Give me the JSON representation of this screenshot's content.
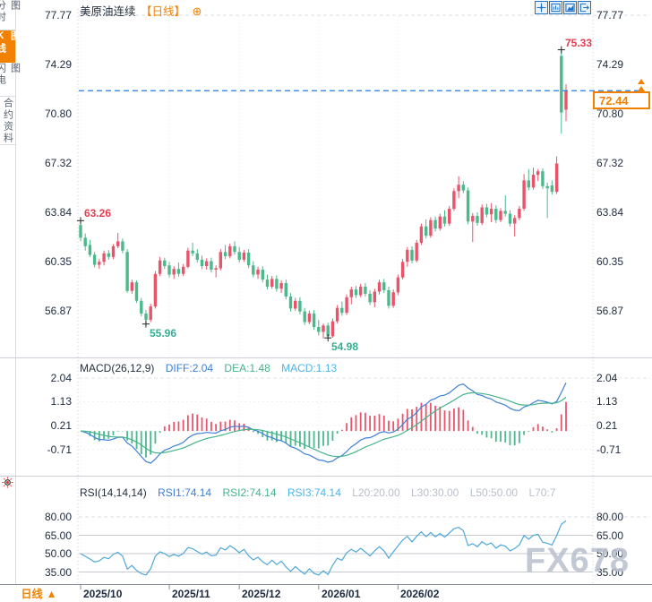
{
  "window": {
    "instrument_title": "美原油连续",
    "period_tag": "【日线】",
    "add_indicator_glyph": "⊕"
  },
  "sidebar": {
    "items": [
      {
        "label": "分时图",
        "active": false
      },
      {
        "label": "K线图",
        "active": true
      },
      {
        "label": "闪电图",
        "active": false
      },
      {
        "label": "合约资料",
        "active": false
      }
    ]
  },
  "toolbar_icons": [
    "crosshair-tool",
    "pane-window",
    "chart-style",
    "pane-exit"
  ],
  "bottom_bar": {
    "period_label": "日线",
    "dropdown_arrow": "▲"
  },
  "watermark": "FX678",
  "colors": {
    "accent_orange": "#f28100",
    "up_red": "#e8556a",
    "down_green": "#4bb98c",
    "diff_blue": "#3d7fd6",
    "dea_green": "#46b38a",
    "macd_cyan": "#4fb4e6",
    "rsi_line": "#4fa8d8",
    "axis_text": "#202c40",
    "annotation_red": "#e63c52",
    "annotation_teal": "#35ae93",
    "price_line_blue": "#1e7fe8",
    "grid": "#c9ced6",
    "watermark_gray": "#bfc6d1",
    "icon_blue": "#1f74c8"
  },
  "chart_data": [
    {
      "type": "candlestick",
      "title": "美原油连续 日线 (WTI crude continuous, daily)",
      "y_axis_labels": [
        "77.77",
        "74.29",
        "70.80",
        "67.32",
        "63.84",
        "60.35",
        "56.87"
      ],
      "y_axis_values": [
        77.77,
        74.29,
        70.8,
        67.32,
        63.84,
        60.35,
        56.87
      ],
      "ylim": [
        54.2,
        78.2
      ],
      "months": [
        {
          "label": "2025/10",
          "index": 0
        },
        {
          "label": "2025/11",
          "index": 19
        },
        {
          "label": "2025/12",
          "index": 34
        },
        {
          "label": "2026/01",
          "index": 51
        },
        {
          "label": "2026/02",
          "index": 68
        }
      ],
      "last_price": {
        "value": 72.44,
        "label": "72.44"
      },
      "annotations": [
        {
          "text": "63.26",
          "price": 63.26,
          "index": 0,
          "placement": "above-right",
          "color": "#e63c52"
        },
        {
          "text": "55.96",
          "price": 55.96,
          "index": 14,
          "placement": "below-right",
          "color": "#35ae93"
        },
        {
          "text": "54.98",
          "price": 54.98,
          "index": 53,
          "placement": "below-right",
          "color": "#35ae93"
        },
        {
          "text": "75.33",
          "price": 75.33,
          "index": 103,
          "placement": "above-right",
          "color": "#e63c52"
        }
      ],
      "candles": [
        [
          62.95,
          63.26,
          61.8,
          62.05
        ],
        [
          62.05,
          62.35,
          61.15,
          61.45
        ],
        [
          61.55,
          61.9,
          60.7,
          60.85
        ],
        [
          60.85,
          61.05,
          59.95,
          60.15
        ],
        [
          60.15,
          60.55,
          59.85,
          60.35
        ],
        [
          60.35,
          61.15,
          60.1,
          60.95
        ],
        [
          60.95,
          61.2,
          60.5,
          60.7
        ],
        [
          60.7,
          61.6,
          60.55,
          61.45
        ],
        [
          61.45,
          62.4,
          61.3,
          61.8
        ],
        [
          61.8,
          62.0,
          60.95,
          61.15
        ],
        [
          61.05,
          61.25,
          58.15,
          58.3
        ],
        [
          58.3,
          59.1,
          58.1,
          58.9
        ],
        [
          58.9,
          59.05,
          57.45,
          57.6
        ],
        [
          57.6,
          57.8,
          56.5,
          56.7
        ],
        [
          56.7,
          56.95,
          55.96,
          56.25
        ],
        [
          56.25,
          57.4,
          56.1,
          57.2
        ],
        [
          57.2,
          59.7,
          57.05,
          59.5
        ],
        [
          59.5,
          60.7,
          59.35,
          60.45
        ],
        [
          60.45,
          60.65,
          59.85,
          60.05
        ],
        [
          60.1,
          60.35,
          59.25,
          59.45
        ],
        [
          59.45,
          60.05,
          59.15,
          59.85
        ],
        [
          59.85,
          60.3,
          59.3,
          59.5
        ],
        [
          59.5,
          60.2,
          59.35,
          60.0
        ],
        [
          60.0,
          61.35,
          59.9,
          61.15
        ],
        [
          61.15,
          61.7,
          60.75,
          60.95
        ],
        [
          60.95,
          61.25,
          60.3,
          60.5
        ],
        [
          60.5,
          60.8,
          59.85,
          60.05
        ],
        [
          60.05,
          60.6,
          59.8,
          60.4
        ],
        [
          60.4,
          60.65,
          59.6,
          59.8
        ],
        [
          59.8,
          60.1,
          59.25,
          59.9
        ],
        [
          59.9,
          61.25,
          59.75,
          61.05
        ],
        [
          61.05,
          61.55,
          60.55,
          60.75
        ],
        [
          60.75,
          61.65,
          60.6,
          61.45
        ],
        [
          61.45,
          61.8,
          60.85,
          61.05
        ],
        [
          61.05,
          61.4,
          60.3,
          60.5
        ],
        [
          60.5,
          61.2,
          60.35,
          61.0
        ],
        [
          61.0,
          61.25,
          59.9,
          60.1
        ],
        [
          60.1,
          60.4,
          59.25,
          59.45
        ],
        [
          59.45,
          60.0,
          59.15,
          59.8
        ],
        [
          59.8,
          60.05,
          58.9,
          59.1
        ],
        [
          59.1,
          59.45,
          58.4,
          58.6
        ],
        [
          58.6,
          59.35,
          58.45,
          59.15
        ],
        [
          59.15,
          59.4,
          58.25,
          58.45
        ],
        [
          58.45,
          59.05,
          58.15,
          58.85
        ],
        [
          58.85,
          59.1,
          57.7,
          57.9
        ],
        [
          57.9,
          58.15,
          56.85,
          57.05
        ],
        [
          57.05,
          57.8,
          56.9,
          57.6
        ],
        [
          57.6,
          57.85,
          56.65,
          56.85
        ],
        [
          56.85,
          57.1,
          55.9,
          56.1
        ],
        [
          56.1,
          56.9,
          55.95,
          56.7
        ],
        [
          56.7,
          56.95,
          55.55,
          55.75
        ],
        [
          55.75,
          56.25,
          55.15,
          55.4
        ],
        [
          55.4,
          56.0,
          54.95,
          55.85
        ],
        [
          55.85,
          56.05,
          54.98,
          55.1
        ],
        [
          55.1,
          56.35,
          55.0,
          56.15
        ],
        [
          56.15,
          57.3,
          56.0,
          57.1
        ],
        [
          57.1,
          57.55,
          56.55,
          56.75
        ],
        [
          56.75,
          58.05,
          56.6,
          57.85
        ],
        [
          57.85,
          58.6,
          57.35,
          58.4
        ],
        [
          58.4,
          58.65,
          57.8,
          58.0
        ],
        [
          58.0,
          58.8,
          57.85,
          58.6
        ],
        [
          58.6,
          58.85,
          57.9,
          58.1
        ],
        [
          58.1,
          58.35,
          57.3,
          57.5
        ],
        [
          57.5,
          58.45,
          57.15,
          58.25
        ],
        [
          58.25,
          59.1,
          58.05,
          58.9
        ],
        [
          58.9,
          59.15,
          58.15,
          58.35
        ],
        [
          58.35,
          58.6,
          57.05,
          57.25
        ],
        [
          57.25,
          58.4,
          57.1,
          58.2
        ],
        [
          58.2,
          59.45,
          58.0,
          59.25
        ],
        [
          59.25,
          60.55,
          59.1,
          60.35
        ],
        [
          60.35,
          61.4,
          60.0,
          61.2
        ],
        [
          61.2,
          61.45,
          60.25,
          60.45
        ],
        [
          60.45,
          61.9,
          60.3,
          61.7
        ],
        [
          61.7,
          63.05,
          61.55,
          62.85
        ],
        [
          62.85,
          63.35,
          62.0,
          62.2
        ],
        [
          62.2,
          63.5,
          62.05,
          63.3
        ],
        [
          63.3,
          63.55,
          62.5,
          62.7
        ],
        [
          62.7,
          63.75,
          62.55,
          63.55
        ],
        [
          63.55,
          64.0,
          62.85,
          63.05
        ],
        [
          63.05,
          64.3,
          62.9,
          64.1
        ],
        [
          64.1,
          65.55,
          63.95,
          65.35
        ],
        [
          65.35,
          66.4,
          64.85,
          65.8
        ],
        [
          65.8,
          66.05,
          65.2,
          65.4
        ],
        [
          65.4,
          65.6,
          63.0,
          63.2
        ],
        [
          63.2,
          63.8,
          61.75,
          63.6
        ],
        [
          63.6,
          63.85,
          62.9,
          63.1
        ],
        [
          63.1,
          64.4,
          62.95,
          64.2
        ],
        [
          64.2,
          64.45,
          63.5,
          63.7
        ],
        [
          63.7,
          64.5,
          63.15,
          64.1
        ],
        [
          64.1,
          64.35,
          63.1,
          63.3
        ],
        [
          63.3,
          64.15,
          63.15,
          63.95
        ],
        [
          63.95,
          65.05,
          63.55,
          63.75
        ],
        [
          63.75,
          64.0,
          62.85,
          63.05
        ],
        [
          63.05,
          63.65,
          62.15,
          63.45
        ],
        [
          63.45,
          64.3,
          63.3,
          64.1
        ],
        [
          64.1,
          66.55,
          63.95,
          66.1
        ],
        [
          66.1,
          66.9,
          65.4,
          65.6
        ],
        [
          65.6,
          67.0,
          65.45,
          66.5
        ],
        [
          66.5,
          66.9,
          66.05,
          66.75
        ],
        [
          66.75,
          66.95,
          65.5,
          65.7
        ],
        [
          65.7,
          65.95,
          63.45,
          65.55
        ],
        [
          65.75,
          66.1,
          65.1,
          65.3
        ],
        [
          65.3,
          67.8,
          65.15,
          67.3
        ],
        [
          74.9,
          75.33,
          69.4,
          70.9
        ],
        [
          71.1,
          72.9,
          70.3,
          72.44
        ]
      ]
    },
    {
      "type": "macd",
      "title": "MACD(26,12,9)",
      "legend": {
        "diff": "DIFF:2.04",
        "dea": "DEA:1.48",
        "macd": "MACD:1.13"
      },
      "values": {
        "diff": 2.04,
        "dea": 1.48,
        "macd": 1.13
      },
      "y_axis_labels": [
        "2.04",
        "1.13",
        "0.21",
        "-0.71"
      ],
      "y_axis_values": [
        2.04,
        1.13,
        0.21,
        -0.71
      ],
      "derived_from": "candles: DIFF=EMA12-EMA26, DEA=EMA9(DIFF), hist=2*(DIFF-DEA)"
    },
    {
      "type": "line",
      "title": "RSI(14,14,14)",
      "legend": {
        "rsi1": "RSI1:74.14",
        "rsi2": "RSI2:74.14",
        "rsi3": "RSI3:74.14",
        "l20": "L20:20.00",
        "l30": "L30:30.00",
        "l50": "L50:50.00",
        "l70": "L70:7"
      },
      "values": {
        "rsi1": 74.14,
        "rsi2": 74.14,
        "rsi3": 74.14
      },
      "levels": [
        80,
        65,
        50,
        35
      ],
      "y_axis_labels": [
        "80.00",
        "65.00",
        "50.00",
        "35.00"
      ],
      "y_axis_values": [
        80,
        65,
        50,
        35
      ],
      "derived_from": "candles: Wilder RSI(14) of closes"
    }
  ]
}
